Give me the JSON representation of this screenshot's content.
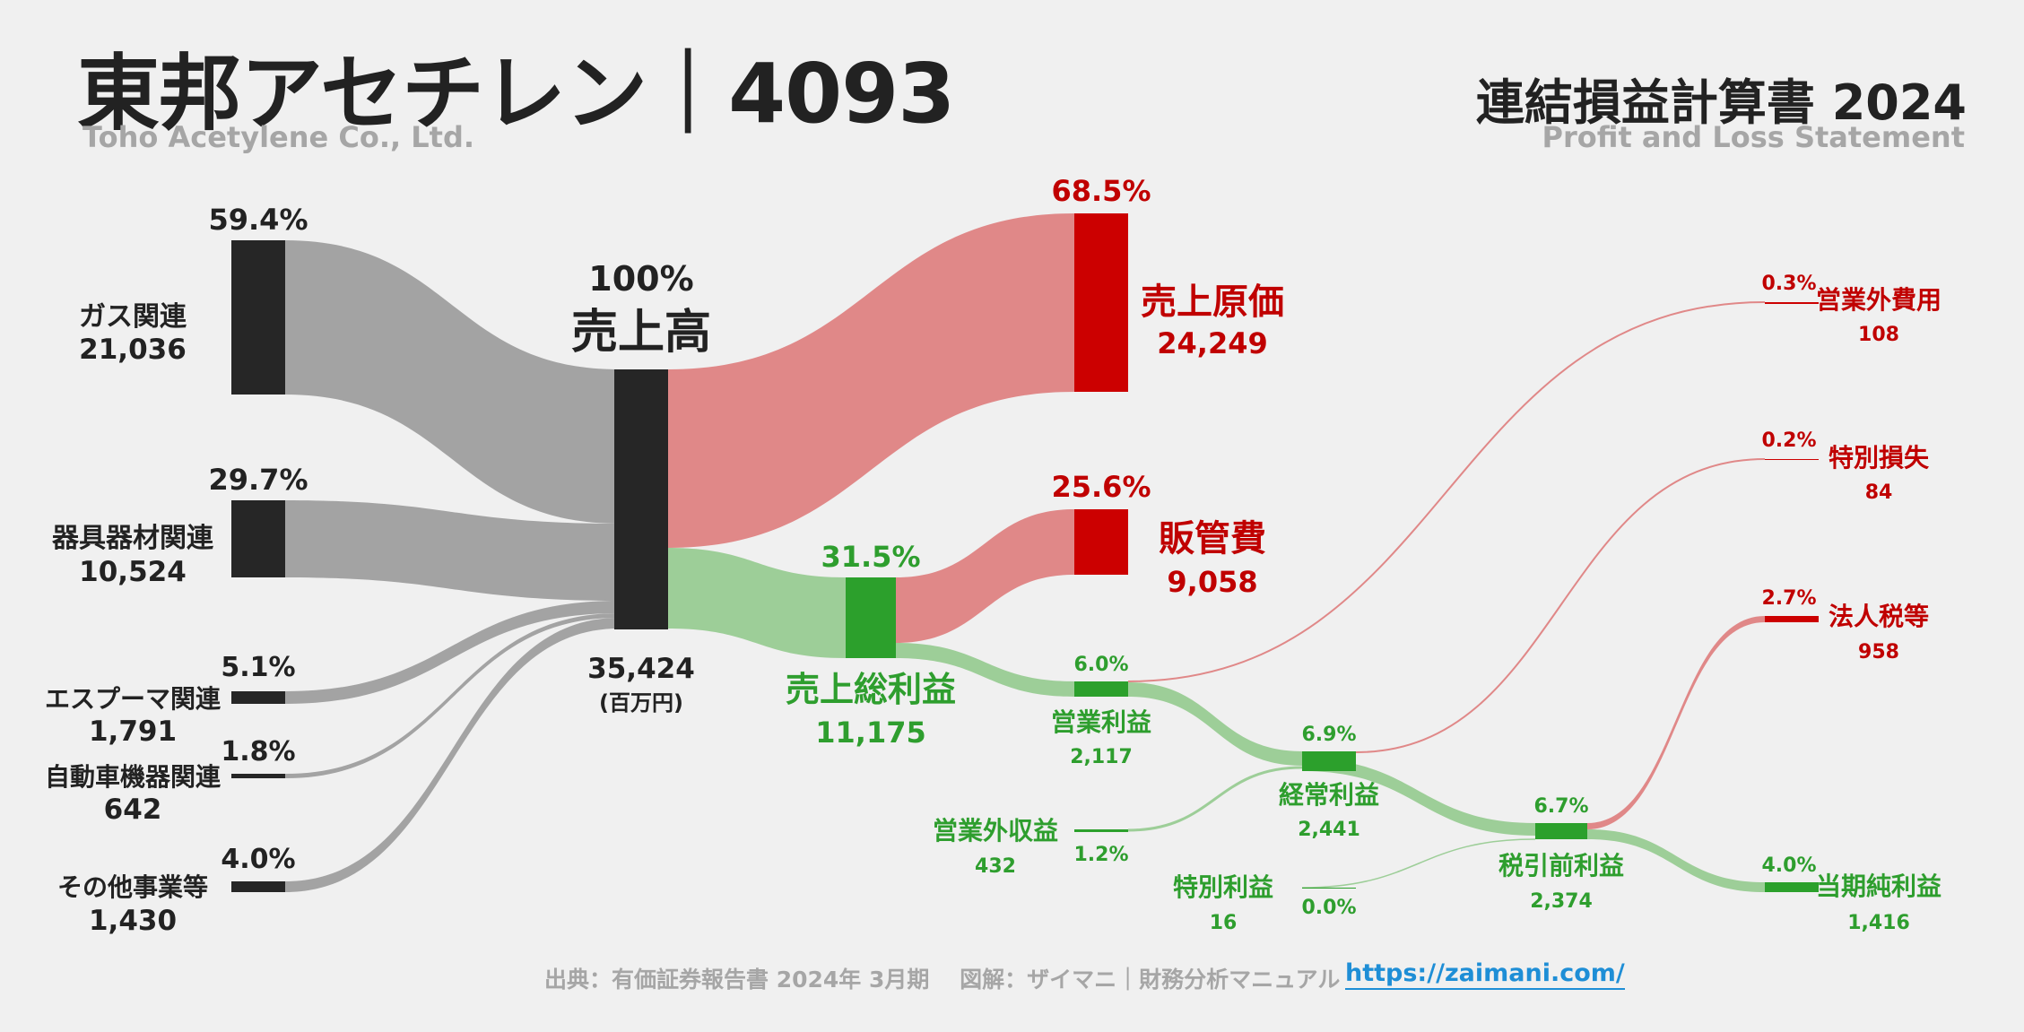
{
  "header": {
    "title": "東邦アセチレン｜4093",
    "subtitle": "Toho Acetylene Co., Ltd.",
    "statement_title": "連結損益計算書 2024",
    "statement_subtitle": "Profit and Loss Statement"
  },
  "colors": {
    "gray_node": "#262626",
    "gray_flow": "#a3a3a3",
    "red_node": "#cc0000",
    "red_flow": "#e08888",
    "red_text": "#c00000",
    "green_node": "#2ca02c",
    "green_flow": "#9dce98",
    "green_text": "#2e9e2e",
    "dark_text": "#222222"
  },
  "chart_data": {
    "type": "sankey",
    "unit": "(百万円)",
    "revenue_segments": [
      {
        "name": "ガス関連",
        "value": "21,036",
        "pct": "59.4%"
      },
      {
        "name": "器具器材関連",
        "value": "10,524",
        "pct": "29.7%"
      },
      {
        "name": "エスプーマ関連",
        "value": "1,791",
        "pct": "5.1%"
      },
      {
        "name": "自動車機器関連",
        "value": "642",
        "pct": "1.8%"
      },
      {
        "name": "その他事業等",
        "value": "1,430",
        "pct": "4.0%"
      }
    ],
    "revenue": {
      "name": "売上高",
      "value": "35,424",
      "pct": "100%"
    },
    "cost_of_sales": {
      "name": "売上原価",
      "value": "24,249",
      "pct": "68.5%"
    },
    "gross_profit": {
      "name": "売上総利益",
      "value": "11,175",
      "pct": "31.5%"
    },
    "sga": {
      "name": "販管費",
      "value": "9,058",
      "pct": "25.6%"
    },
    "operating_income": {
      "name": "営業利益",
      "value": "2,117",
      "pct": "6.0%"
    },
    "non_operating_expense": {
      "name": "営業外費用",
      "value": "108",
      "pct": "0.3%"
    },
    "non_operating_income": {
      "name": "営業外収益",
      "value": "432",
      "pct": "1.2%"
    },
    "ordinary_income": {
      "name": "経常利益",
      "value": "2,441",
      "pct": "6.9%"
    },
    "extraordinary_loss": {
      "name": "特別損失",
      "value": "84",
      "pct": "0.2%"
    },
    "extraordinary_income": {
      "name": "特別利益",
      "value": "16",
      "pct": "0.0%"
    },
    "pretax_income": {
      "name": "税引前利益",
      "value": "2,374",
      "pct": "6.7%"
    },
    "income_taxes": {
      "name": "法人税等",
      "value": "958",
      "pct": "2.7%"
    },
    "net_income": {
      "name": "当期純利益",
      "value": "1,416",
      "pct": "4.0%"
    }
  },
  "footer": {
    "source": "出典：有価証券報告書 2024年 3月期　 図解：ザイマニ｜財務分析マニュアル",
    "link": "https://zaimani.com/"
  }
}
